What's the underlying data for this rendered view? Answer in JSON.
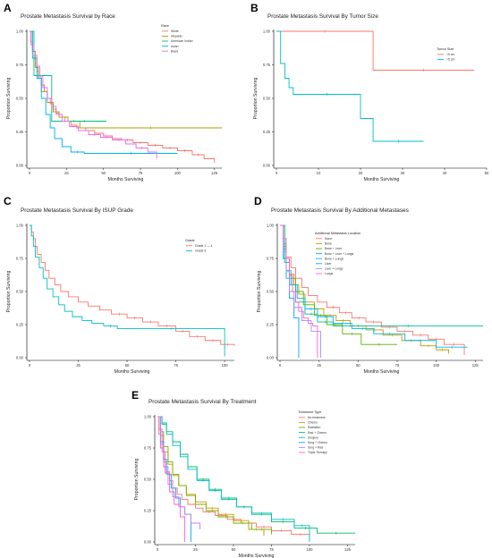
{
  "panel_letters": [
    "A",
    "B",
    "C",
    "D",
    "E"
  ],
  "chart_data": [
    {
      "panel": "A",
      "type": "line",
      "title": "Prostate Metastasis Survival by Race",
      "xlabel": "Months Surviving",
      "ylabel": "Proportion Surviving",
      "xlim": [
        0,
        130
      ],
      "ylim": [
        0,
        1
      ],
      "xticks": [
        0,
        25,
        50,
        75,
        100,
        125
      ],
      "yticks": [
        0.0,
        0.25,
        0.5,
        0.75,
        1.0
      ],
      "legend_title": "Race",
      "legend_position": "top-right",
      "series": [
        {
          "name": "White",
          "color": "#F8766D",
          "x": [
            0,
            1,
            2,
            3,
            4,
            5,
            6,
            8,
            10,
            12,
            14,
            16,
            18,
            20,
            24,
            28,
            32,
            38,
            44,
            50,
            56,
            62,
            70,
            80,
            90,
            100,
            110,
            118,
            125
          ],
          "y": [
            1.0,
            0.92,
            0.86,
            0.8,
            0.74,
            0.7,
            0.65,
            0.6,
            0.55,
            0.5,
            0.46,
            0.42,
            0.39,
            0.36,
            0.33,
            0.3,
            0.28,
            0.26,
            0.24,
            0.22,
            0.2,
            0.19,
            0.17,
            0.15,
            0.13,
            0.11,
            0.08,
            0.05,
            0.02
          ]
        },
        {
          "name": "Hispanic",
          "color": "#A3A500",
          "x": [
            0,
            2,
            4,
            6,
            8,
            12,
            16,
            20,
            26,
            34,
            130
          ],
          "y": [
            1.0,
            0.85,
            0.73,
            0.65,
            0.55,
            0.47,
            0.4,
            0.36,
            0.33,
            0.28,
            0.28
          ]
        },
        {
          "name": "American Indian",
          "color": "#00BF7D",
          "x": [
            0,
            3,
            9,
            15,
            22,
            52
          ],
          "y": [
            1.0,
            0.67,
            0.67,
            0.33,
            0.33,
            0.33
          ]
        },
        {
          "name": "Asian",
          "color": "#00B0F6",
          "x": [
            0,
            2,
            5,
            8,
            11,
            14,
            17,
            22,
            28,
            37,
            100
          ],
          "y": [
            1.0,
            0.8,
            0.65,
            0.5,
            0.38,
            0.28,
            0.2,
            0.14,
            0.1,
            0.09,
            0.09
          ]
        },
        {
          "name": "Black",
          "color": "#E76BF3",
          "x": [
            0,
            1,
            3,
            5,
            7,
            9,
            12,
            15,
            18,
            22,
            27,
            33,
            40,
            48,
            56,
            65,
            72,
            80,
            86
          ],
          "y": [
            1.0,
            0.9,
            0.82,
            0.74,
            0.66,
            0.58,
            0.5,
            0.44,
            0.38,
            0.33,
            0.29,
            0.26,
            0.23,
            0.21,
            0.19,
            0.16,
            0.13,
            0.1,
            0.05
          ]
        }
      ]
    },
    {
      "panel": "B",
      "type": "line",
      "title": "Prostate Metastasis Survival By Tumor Size",
      "xlabel": "Months Surviving",
      "ylabel": "Proportion Surviving",
      "xlim": [
        0,
        50
      ],
      "ylim": [
        0,
        1
      ],
      "xticks": [
        0,
        10,
        20,
        30,
        40,
        50
      ],
      "yticks": [
        0.0,
        0.25,
        0.5,
        0.75,
        1.0
      ],
      "legend_title": "Tumor Size",
      "legend_position": "right",
      "series": [
        {
          "name": "<5 cm",
          "color": "#F8766D",
          "x": [
            0,
            23,
            23,
            47
          ],
          "y": [
            1.0,
            1.0,
            0.71,
            0.71
          ]
        },
        {
          "name": ">5 cm",
          "color": "#00BFC4",
          "x": [
            0,
            1,
            2,
            3,
            4,
            20,
            23,
            35
          ],
          "y": [
            1.0,
            0.76,
            0.65,
            0.58,
            0.53,
            0.35,
            0.18,
            0.18
          ]
        }
      ]
    },
    {
      "panel": "C",
      "type": "line",
      "title": "Prostate Metastasis Survival By ISUP Grade",
      "xlabel": "Months Surviving",
      "ylabel": "Proportion Surviving",
      "xlim": [
        0,
        105
      ],
      "ylim": [
        0,
        1
      ],
      "xticks": [
        0,
        25,
        50,
        75,
        100
      ],
      "yticks": [
        0.0,
        0.25,
        0.5,
        0.75,
        1.0
      ],
      "legend_title": "Grade",
      "legend_position": "top-right",
      "series": [
        {
          "name": "Grade 1 — 4",
          "color": "#F8766D",
          "x": [
            0,
            1,
            2,
            3,
            4,
            6,
            8,
            10,
            13,
            16,
            20,
            25,
            30,
            36,
            42,
            50,
            58,
            66,
            75,
            82,
            90,
            98,
            105
          ],
          "y": [
            1.0,
            0.95,
            0.9,
            0.84,
            0.78,
            0.72,
            0.66,
            0.6,
            0.55,
            0.5,
            0.46,
            0.42,
            0.39,
            0.36,
            0.33,
            0.3,
            0.27,
            0.24,
            0.2,
            0.16,
            0.13,
            0.1,
            0.09
          ]
        },
        {
          "name": "Grade 5",
          "color": "#00BFC4",
          "x": [
            0,
            1,
            2,
            3,
            5,
            7,
            9,
            12,
            15,
            18,
            22,
            27,
            32,
            38,
            45,
            100,
            100
          ],
          "y": [
            1.0,
            0.92,
            0.84,
            0.76,
            0.68,
            0.6,
            0.52,
            0.46,
            0.4,
            0.35,
            0.31,
            0.28,
            0.26,
            0.24,
            0.22,
            0.22,
            0.01
          ]
        }
      ]
    },
    {
      "panel": "D",
      "type": "line",
      "title": "Prostate Metastasis Survival By Additional Metastases",
      "xlabel": "Months Surviving",
      "ylabel": "Proportion Surviving",
      "xlim": [
        0,
        130
      ],
      "ylim": [
        0,
        1
      ],
      "xticks": [
        0,
        25,
        50,
        75,
        100,
        125
      ],
      "yticks": [
        0.0,
        0.25,
        0.5,
        0.75,
        1.0
      ],
      "legend_title": "Additional Metastasis Location",
      "legend_position": "top-right",
      "series": [
        {
          "name": "None",
          "color": "#F8766D",
          "x": [
            0,
            2,
            4,
            7,
            10,
            14,
            18,
            24,
            30,
            38,
            46,
            55,
            65,
            75,
            85,
            95,
            105,
            118
          ],
          "y": [
            1.0,
            0.86,
            0.76,
            0.68,
            0.6,
            0.53,
            0.47,
            0.42,
            0.38,
            0.34,
            0.3,
            0.27,
            0.23,
            0.2,
            0.17,
            0.14,
            0.1,
            0.02
          ]
        },
        {
          "name": "Bone",
          "color": "#C49A00",
          "x": [
            0,
            2,
            4,
            6,
            9,
            12,
            16,
            22,
            28,
            36,
            45,
            55,
            66,
            78,
            90,
            100,
            108
          ],
          "y": [
            1.0,
            0.84,
            0.72,
            0.63,
            0.55,
            0.48,
            0.42,
            0.37,
            0.32,
            0.28,
            0.24,
            0.21,
            0.17,
            0.13,
            0.09,
            0.06,
            0.03
          ]
        },
        {
          "name": "Bone + Liver",
          "color": "#53B400",
          "x": [
            0,
            3,
            6,
            10,
            15,
            22,
            30,
            40,
            52,
            75
          ],
          "y": [
            1.0,
            0.75,
            0.6,
            0.5,
            0.4,
            0.32,
            0.25,
            0.18,
            0.1,
            0.1
          ]
        },
        {
          "name": "Bone + Liver + Lungs",
          "color": "#00C094",
          "x": [
            0,
            3,
            6,
            10,
            16,
            24,
            34,
            130
          ],
          "y": [
            1.0,
            0.72,
            0.55,
            0.42,
            0.33,
            0.27,
            0.24,
            0.24
          ]
        },
        {
          "name": "Bone + Lungs",
          "color": "#00B6EB",
          "x": [
            0,
            2,
            4,
            7,
            11,
            16,
            24,
            34,
            46,
            60,
            80,
            100,
            120
          ],
          "y": [
            1.0,
            0.82,
            0.66,
            0.55,
            0.45,
            0.37,
            0.31,
            0.26,
            0.22,
            0.18,
            0.13,
            0.08,
            0.08
          ]
        },
        {
          "name": "Liver",
          "color": "#06A4FF",
          "x": [
            0,
            2,
            4,
            6,
            9,
            12,
            12
          ],
          "y": [
            1.0,
            0.75,
            0.6,
            0.45,
            0.3,
            0.2,
            0.0
          ]
        },
        {
          "name": "Liver + Lungs",
          "color": "#A58AFF",
          "x": [
            0,
            2,
            4,
            6,
            9,
            14,
            20,
            26
          ],
          "y": [
            1.0,
            0.8,
            0.65,
            0.5,
            0.38,
            0.28,
            0.2,
            0.0
          ]
        },
        {
          "name": "Lungs",
          "color": "#FB61D7",
          "x": [
            0,
            1,
            2,
            4,
            6,
            8,
            10,
            12,
            15,
            18,
            21,
            24,
            24
          ],
          "y": [
            1.0,
            1.0,
            0.9,
            0.75,
            0.62,
            0.5,
            0.42,
            0.35,
            0.3,
            0.26,
            0.24,
            0.22,
            0.0
          ]
        }
      ]
    },
    {
      "panel": "E",
      "type": "line",
      "title": "Prostate Metastasis Survival By Treatment",
      "xlabel": "Months Surviving",
      "ylabel": "Proportion Surviving",
      "xlim": [
        0,
        130
      ],
      "ylim": [
        0,
        1
      ],
      "xticks": [
        0,
        25,
        50,
        75,
        100,
        125
      ],
      "yticks": [
        0.0,
        0.25,
        0.5,
        0.75,
        1.0
      ],
      "legend_title": "Treatment Type",
      "legend_position": "top-right",
      "series": [
        {
          "name": "No treatment",
          "color": "#F8766D",
          "x": [
            0,
            1,
            2,
            4,
            6,
            8,
            10,
            13,
            16,
            20,
            25,
            30,
            38,
            46,
            55,
            65,
            75,
            88,
            100
          ],
          "y": [
            1.0,
            0.86,
            0.75,
            0.64,
            0.56,
            0.49,
            0.43,
            0.38,
            0.34,
            0.3,
            0.27,
            0.24,
            0.21,
            0.18,
            0.15,
            0.12,
            0.09,
            0.06,
            0.03
          ]
        },
        {
          "name": "Chemo",
          "color": "#CD9600",
          "x": [
            0,
            2,
            4,
            7,
            10,
            14,
            19,
            25,
            32,
            40,
            50,
            60,
            70
          ],
          "y": [
            1.0,
            0.85,
            0.72,
            0.62,
            0.53,
            0.45,
            0.38,
            0.32,
            0.27,
            0.22,
            0.17,
            0.1,
            0.05
          ]
        },
        {
          "name": "Radiation",
          "color": "#7CAE00",
          "x": [
            0,
            2,
            4,
            7,
            10,
            14,
            19,
            25,
            32,
            40,
            50,
            62,
            75
          ],
          "y": [
            1.0,
            0.88,
            0.76,
            0.64,
            0.54,
            0.45,
            0.37,
            0.3,
            0.25,
            0.2,
            0.15,
            0.1,
            0.06
          ]
        },
        {
          "name": "Rad + Chemo",
          "color": "#00BE67",
          "x": [
            0,
            3,
            6,
            10,
            15,
            20,
            26,
            34,
            42,
            52,
            62,
            75,
            90,
            105,
            130
          ],
          "y": [
            1.0,
            0.95,
            0.88,
            0.8,
            0.7,
            0.6,
            0.5,
            0.42,
            0.35,
            0.28,
            0.22,
            0.16,
            0.11,
            0.07,
            0.07
          ]
        },
        {
          "name": "Surgery",
          "color": "#00BFC4",
          "x": [
            0,
            3,
            6,
            10,
            15,
            20,
            26,
            34,
            42,
            52,
            62,
            75,
            90,
            100,
            100
          ],
          "y": [
            1.0,
            0.94,
            0.86,
            0.77,
            0.68,
            0.58,
            0.49,
            0.41,
            0.34,
            0.28,
            0.23,
            0.18,
            0.13,
            0.1,
            0.0
          ]
        },
        {
          "name": "Surg + Chemo",
          "color": "#00A9FF",
          "x": [
            0,
            2,
            4,
            6,
            9,
            12,
            15,
            18,
            22,
            22
          ],
          "y": [
            1.0,
            0.8,
            0.66,
            0.54,
            0.43,
            0.35,
            0.28,
            0.22,
            0.15,
            0.0
          ]
        },
        {
          "name": "Surg + Rad",
          "color": "#C77CFF",
          "x": [
            0,
            2,
            4,
            7,
            10,
            14,
            18,
            22,
            28
          ],
          "y": [
            1.0,
            0.78,
            0.6,
            0.46,
            0.36,
            0.28,
            0.22,
            0.15,
            0.1
          ]
        },
        {
          "name": "Triple Therapy",
          "color": "#FF61CC",
          "x": [
            0,
            1,
            3,
            5,
            8,
            11,
            15,
            18,
            18
          ],
          "y": [
            1.0,
            0.9,
            0.72,
            0.55,
            0.4,
            0.3,
            0.2,
            0.15,
            0.0
          ]
        }
      ]
    }
  ]
}
